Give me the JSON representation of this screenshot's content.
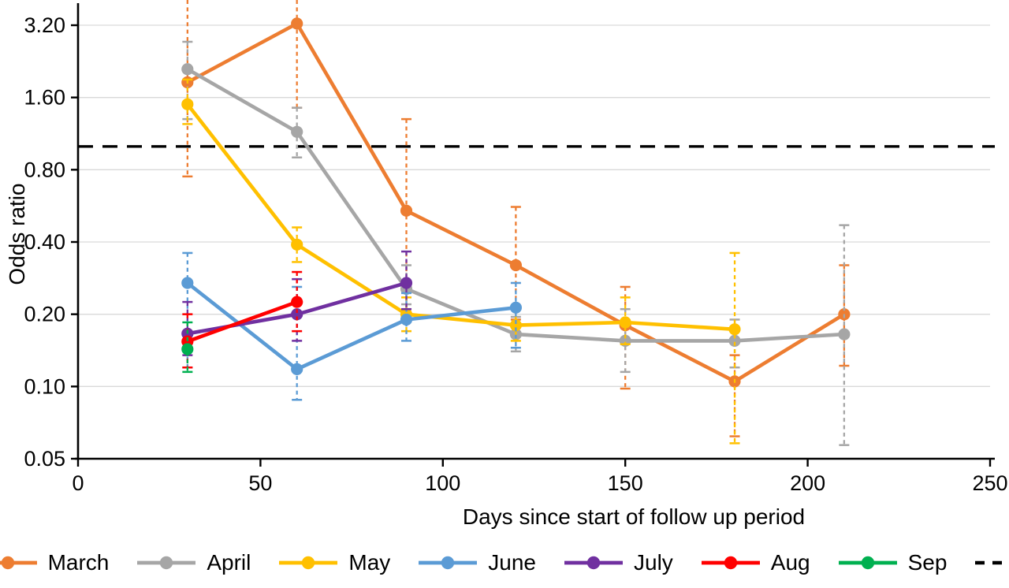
{
  "chart_data": {
    "type": "line",
    "title": "",
    "xlabel": "Days since start of follow up period",
    "ylabel": "Odds ratio",
    "grid": "horizontal",
    "legend_position": "bottom",
    "legend_dashed_entry": true,
    "x_axis": {
      "min": 0,
      "max": 250,
      "ticks": [
        0,
        50,
        100,
        150,
        200,
        250
      ]
    },
    "y_axis": {
      "scale": "log2",
      "min": 0.05,
      "max": 4.0,
      "ticks": [
        {
          "v": 3.2,
          "label": "3.20"
        },
        {
          "v": 1.6,
          "label": "1.60"
        },
        {
          "v": 0.8,
          "label": "0.80"
        },
        {
          "v": 0.4,
          "label": "0.40"
        },
        {
          "v": 0.2,
          "label": "0.20"
        },
        {
          "v": 0.1,
          "label": "0.10"
        },
        {
          "v": 0.05,
          "label": "0.05"
        }
      ]
    },
    "reference_line": {
      "value": 1.0,
      "color": "#000000",
      "style": "dashed"
    },
    "colors": {
      "grid": "#D9D9D9",
      "axis": "#000000"
    },
    "series": [
      {
        "name": "March",
        "color": "#ED7D31",
        "points": [
          {
            "x": 30,
            "y": 1.85,
            "lo": 0.75,
            "hi": 4.2
          },
          {
            "x": 60,
            "y": 3.25,
            "lo": 1.45,
            "hi": 4.2
          },
          {
            "x": 90,
            "y": 0.54,
            "lo": 0.21,
            "hi": 1.3
          },
          {
            "x": 120,
            "y": 0.32,
            "lo": 0.19,
            "hi": 0.56
          },
          {
            "x": 150,
            "y": 0.18,
            "lo": 0.098,
            "hi": 0.26
          },
          {
            "x": 180,
            "y": 0.105,
            "lo": 0.062,
            "hi": 0.135
          },
          {
            "x": 210,
            "y": 0.2,
            "lo": 0.122,
            "hi": 0.32
          }
        ]
      },
      {
        "name": "April",
        "color": "#A6A6A6",
        "points": [
          {
            "x": 30,
            "y": 2.1,
            "lo": 1.3,
            "hi": 2.73
          },
          {
            "x": 60,
            "y": 1.15,
            "lo": 0.9,
            "hi": 1.45
          },
          {
            "x": 90,
            "y": 0.255,
            "lo": 0.22,
            "hi": 0.32
          },
          {
            "x": 120,
            "y": 0.165,
            "lo": 0.14,
            "hi": 0.195
          },
          {
            "x": 150,
            "y": 0.155,
            "lo": 0.115,
            "hi": 0.21
          },
          {
            "x": 180,
            "y": 0.155,
            "lo": 0.12,
            "hi": 0.19
          },
          {
            "x": 210,
            "y": 0.165,
            "lo": 0.057,
            "hi": 0.47
          }
        ]
      },
      {
        "name": "May",
        "color": "#FFC000",
        "points": [
          {
            "x": 30,
            "y": 1.5,
            "lo": 1.24,
            "hi": 1.9
          },
          {
            "x": 60,
            "y": 0.39,
            "lo": 0.33,
            "hi": 0.46
          },
          {
            "x": 90,
            "y": 0.2,
            "lo": 0.17,
            "hi": 0.235
          },
          {
            "x": 120,
            "y": 0.18,
            "lo": 0.155,
            "hi": 0.21
          },
          {
            "x": 150,
            "y": 0.185,
            "lo": 0.15,
            "hi": 0.235
          },
          {
            "x": 180,
            "y": 0.173,
            "lo": 0.058,
            "hi": 0.36
          }
        ]
      },
      {
        "name": "June",
        "color": "#5B9BD5",
        "points": [
          {
            "x": 30,
            "y": 0.27,
            "lo": 0.12,
            "hi": 0.36
          },
          {
            "x": 60,
            "y": 0.118,
            "lo": 0.088,
            "hi": 0.26
          },
          {
            "x": 90,
            "y": 0.19,
            "lo": 0.155,
            "hi": 0.245
          },
          {
            "x": 120,
            "y": 0.213,
            "lo": 0.145,
            "hi": 0.27
          }
        ]
      },
      {
        "name": "July",
        "color": "#7030A0",
        "points": [
          {
            "x": 30,
            "y": 0.166,
            "lo": 0.135,
            "hi": 0.225
          },
          {
            "x": 60,
            "y": 0.2,
            "lo": 0.155,
            "hi": 0.28
          },
          {
            "x": 90,
            "y": 0.27,
            "lo": 0.21,
            "hi": 0.365
          }
        ]
      },
      {
        "name": "Aug",
        "color": "#FF0000",
        "points": [
          {
            "x": 30,
            "y": 0.154,
            "lo": 0.12,
            "hi": 0.2
          },
          {
            "x": 60,
            "y": 0.225,
            "lo": 0.17,
            "hi": 0.3
          }
        ]
      },
      {
        "name": "Sep",
        "color": "#00B050",
        "points": [
          {
            "x": 30,
            "y": 0.143,
            "lo": 0.115,
            "hi": 0.185
          }
        ]
      }
    ]
  }
}
